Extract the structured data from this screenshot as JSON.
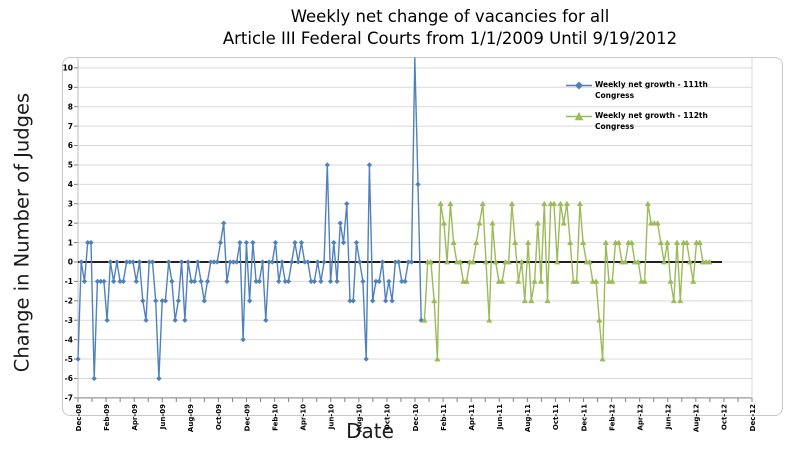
{
  "title": {
    "line1": "Weekly net change of vacancies for all",
    "line2": "Article III Federal Courts from 1/1/2009 Until 9/19/2012"
  },
  "axes": {
    "y_label": "Change in Number of Judges",
    "x_label": "Date",
    "y_ticks": [
      10,
      9,
      8,
      7,
      6,
      5,
      4,
      3,
      2,
      1,
      0,
      -1,
      -2,
      -3,
      -4,
      -5,
      -6,
      -7
    ],
    "x_tick_labels": [
      "Dec-08",
      "Feb-09",
      "Apr-09",
      "Jun-09",
      "Aug-09",
      "Oct-09",
      "Dec-09",
      "Feb-10",
      "Apr-10",
      "Jun-10",
      "Aug-10",
      "Oct-10",
      "Dec-10",
      "Feb-11",
      "Apr-11",
      "Jun-11",
      "Aug-11",
      "Oct-11",
      "Dec-11",
      "Feb-12",
      "Apr-12",
      "Jun-12",
      "Aug-12",
      "Oct-12",
      "Dec-12"
    ],
    "ylim": [
      -7,
      10
    ]
  },
  "legend": {
    "items": [
      {
        "label": "Weekly net growth - 111th Congress",
        "color": "#4F81BD",
        "marker": "diamond"
      },
      {
        "label": "Weekly net growth - 112th Congress",
        "color": "#9BBB59",
        "marker": "triangle"
      }
    ]
  },
  "colors": {
    "gridline": "#d9d9d9",
    "axis_line": "#7f7f7f",
    "left_axis": "#bdbdbd",
    "zero_line": "#000000"
  },
  "chart_data": {
    "type": "line",
    "title": "Weekly net change of vacancies for all Article III Federal Courts from 1/1/2009 Until 9/19/2012",
    "xlabel": "Date",
    "ylabel": "Change in Number of Judges",
    "x_unit": "week",
    "x_range": [
      "Dec-08",
      "Dec-12"
    ],
    "ylim": [
      -7,
      10
    ],
    "grid": true,
    "legend_position": "upper-right",
    "zero_baseline": true,
    "series": [
      {
        "name": "Weekly net growth - 111th Congress",
        "color": "#4F81BD",
        "marker": "diamond",
        "start_week": 0,
        "values": [
          -5,
          0,
          -1,
          1,
          1,
          -6,
          -1,
          -1,
          -1,
          -3,
          0,
          -1,
          0,
          -1,
          -1,
          0,
          0,
          0,
          -1,
          0,
          -2,
          -3,
          0,
          0,
          -2,
          -6,
          -2,
          -2,
          0,
          -1,
          -3,
          -2,
          0,
          -3,
          0,
          -1,
          -1,
          0,
          -1,
          -2,
          -1,
          0,
          0,
          0,
          1,
          2,
          -1,
          0,
          0,
          0,
          1,
          -4,
          1,
          -2,
          1,
          -1,
          -1,
          0,
          -3,
          0,
          0,
          1,
          -1,
          0,
          -1,
          -1,
          0,
          1,
          0,
          1,
          0,
          0,
          -1,
          -1,
          0,
          -1,
          0,
          5,
          -1,
          1,
          -1,
          2,
          1,
          3,
          -2,
          -2,
          1,
          0,
          -1,
          -5,
          5,
          -2,
          -1,
          -1,
          0,
          -2,
          -1,
          -2,
          0,
          0,
          -1,
          -1,
          0,
          0,
          11,
          4,
          -3
        ]
      },
      {
        "name": "Weekly net growth - 112th Congress",
        "color": "#9BBB59",
        "marker": "triangle",
        "start_week": 107,
        "values": [
          -3,
          0,
          0,
          -2,
          -5,
          3,
          2,
          0,
          3,
          1,
          0,
          0,
          -1,
          -1,
          0,
          0,
          1,
          2,
          3,
          0,
          -3,
          2,
          0,
          -1,
          -1,
          0,
          0,
          3,
          1,
          -1,
          0,
          -2,
          1,
          -2,
          -1,
          2,
          -1,
          3,
          -2,
          3,
          3,
          0,
          3,
          2,
          3,
          1,
          -1,
          -1,
          3,
          1,
          0,
          0,
          -1,
          -1,
          -3,
          -5,
          1,
          -1,
          -1,
          1,
          1,
          0,
          0,
          1,
          1,
          0,
          0,
          -1,
          -1,
          3,
          2,
          2,
          2,
          1,
          0,
          1,
          -1,
          -2,
          1,
          -2,
          1,
          1,
          0,
          -1,
          1,
          1,
          0,
          0,
          0
        ]
      }
    ]
  }
}
